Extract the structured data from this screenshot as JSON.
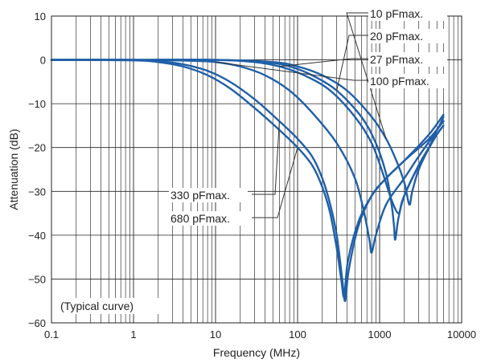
{
  "chart_data": {
    "type": "line",
    "title": "",
    "xlabel": "Frequency (MHz)",
    "ylabel": "Attenuation (dB)",
    "x_scale": "log",
    "xlim": [
      0.1,
      10000
    ],
    "ylim": [
      -60,
      10
    ],
    "grid": true,
    "annotation": "(Typical curve)",
    "x_ticks": [
      {
        "value": 0.1,
        "label": "0.1"
      },
      {
        "value": 1,
        "label": "1"
      },
      {
        "value": 10,
        "label": "10"
      },
      {
        "value": 100,
        "label": "100"
      },
      {
        "value": 1000,
        "label": "1000"
      },
      {
        "value": 10000,
        "label": "10000"
      }
    ],
    "y_ticks": [
      {
        "value": 10,
        "label": "10"
      },
      {
        "value": 0,
        "label": "0"
      },
      {
        "value": -10,
        "label": "−10"
      },
      {
        "value": -20,
        "label": "−20"
      },
      {
        "value": -30,
        "label": "−30"
      },
      {
        "value": -40,
        "label": "−40"
      },
      {
        "value": -50,
        "label": "−50"
      },
      {
        "value": -60,
        "label": "−60"
      }
    ],
    "line_color": "#1f5fa8",
    "series": [
      {
        "name": "10 pFmax.",
        "points": [
          [
            0.1,
            0
          ],
          [
            1,
            0
          ],
          [
            10,
            0
          ],
          [
            50,
            -0.5
          ],
          [
            100,
            -1.5
          ],
          [
            200,
            -3.5
          ],
          [
            400,
            -7
          ],
          [
            800,
            -13
          ],
          [
            1200,
            -18
          ],
          [
            1600,
            -23
          ],
          [
            2000,
            -28
          ],
          [
            2300,
            -33
          ],
          [
            2500,
            -30
          ],
          [
            3000,
            -25
          ],
          [
            4000,
            -20
          ],
          [
            5000,
            -16
          ],
          [
            6000,
            -14
          ]
        ]
      },
      {
        "name": "20 pFmax.",
        "points": [
          [
            0.1,
            0
          ],
          [
            1,
            0
          ],
          [
            10,
            0
          ],
          [
            40,
            -0.5
          ],
          [
            80,
            -1.5
          ],
          [
            150,
            -3.5
          ],
          [
            300,
            -7
          ],
          [
            600,
            -13
          ],
          [
            900,
            -19
          ],
          [
            1200,
            -26
          ],
          [
            1400,
            -33
          ],
          [
            1500,
            -38
          ],
          [
            1550,
            -41
          ],
          [
            1700,
            -36
          ],
          [
            2000,
            -31
          ],
          [
            3000,
            -24
          ],
          [
            4000,
            -20
          ],
          [
            5000,
            -17
          ],
          [
            6000,
            -15
          ]
        ]
      },
      {
        "name": "27 pFmax.",
        "points": [
          [
            0.1,
            0
          ],
          [
            1,
            0
          ],
          [
            10,
            0
          ],
          [
            30,
            -0.5
          ],
          [
            60,
            -1.5
          ],
          [
            120,
            -3.5
          ],
          [
            250,
            -7
          ],
          [
            500,
            -13
          ],
          [
            800,
            -19
          ],
          [
            1100,
            -26
          ],
          [
            1400,
            -32
          ],
          [
            1700,
            -35
          ],
          [
            1900,
            -32
          ],
          [
            2500,
            -27
          ],
          [
            3500,
            -22
          ],
          [
            5000,
            -17
          ],
          [
            6000,
            -15
          ]
        ]
      },
      {
        "name": "100 pFmax.",
        "points": [
          [
            0.1,
            0
          ],
          [
            1,
            0
          ],
          [
            5,
            -0.2
          ],
          [
            10,
            -0.5
          ],
          [
            20,
            -1.5
          ],
          [
            40,
            -3.5
          ],
          [
            80,
            -7
          ],
          [
            150,
            -12
          ],
          [
            300,
            -19
          ],
          [
            500,
            -27
          ],
          [
            650,
            -35
          ],
          [
            750,
            -41
          ],
          [
            800,
            -44
          ],
          [
            900,
            -40
          ],
          [
            1200,
            -33
          ],
          [
            2000,
            -27
          ],
          [
            3000,
            -22
          ],
          [
            5000,
            -16
          ],
          [
            6000,
            -13
          ]
        ]
      },
      {
        "name": "330 pFmax.",
        "points": [
          [
            0.1,
            0
          ],
          [
            1,
            0
          ],
          [
            2,
            -0.3
          ],
          [
            4,
            -1
          ],
          [
            8,
            -2.5
          ],
          [
            15,
            -5
          ],
          [
            30,
            -9
          ],
          [
            60,
            -14
          ],
          [
            100,
            -18
          ],
          [
            150,
            -22
          ],
          [
            200,
            -27
          ],
          [
            250,
            -33
          ],
          [
            300,
            -40
          ],
          [
            350,
            -50
          ],
          [
            380,
            -55
          ],
          [
            420,
            -48
          ],
          [
            550,
            -38
          ],
          [
            800,
            -31
          ],
          [
            1200,
            -27
          ],
          [
            2000,
            -23
          ],
          [
            4000,
            -17
          ],
          [
            6000,
            -12.5
          ]
        ]
      },
      {
        "name": "680 pFmax.",
        "points": [
          [
            0.1,
            0
          ],
          [
            1,
            -0.1
          ],
          [
            2,
            -0.5
          ],
          [
            4,
            -1.5
          ],
          [
            8,
            -3.5
          ],
          [
            15,
            -6.5
          ],
          [
            30,
            -11
          ],
          [
            60,
            -16
          ],
          [
            100,
            -20
          ],
          [
            150,
            -24
          ],
          [
            200,
            -29
          ],
          [
            250,
            -35
          ],
          [
            300,
            -43
          ],
          [
            340,
            -50
          ],
          [
            370,
            -54
          ],
          [
            410,
            -46
          ],
          [
            550,
            -37
          ],
          [
            800,
            -31
          ],
          [
            1200,
            -27
          ],
          [
            2000,
            -23
          ],
          [
            4000,
            -18
          ],
          [
            6000,
            -14
          ]
        ]
      }
    ]
  }
}
